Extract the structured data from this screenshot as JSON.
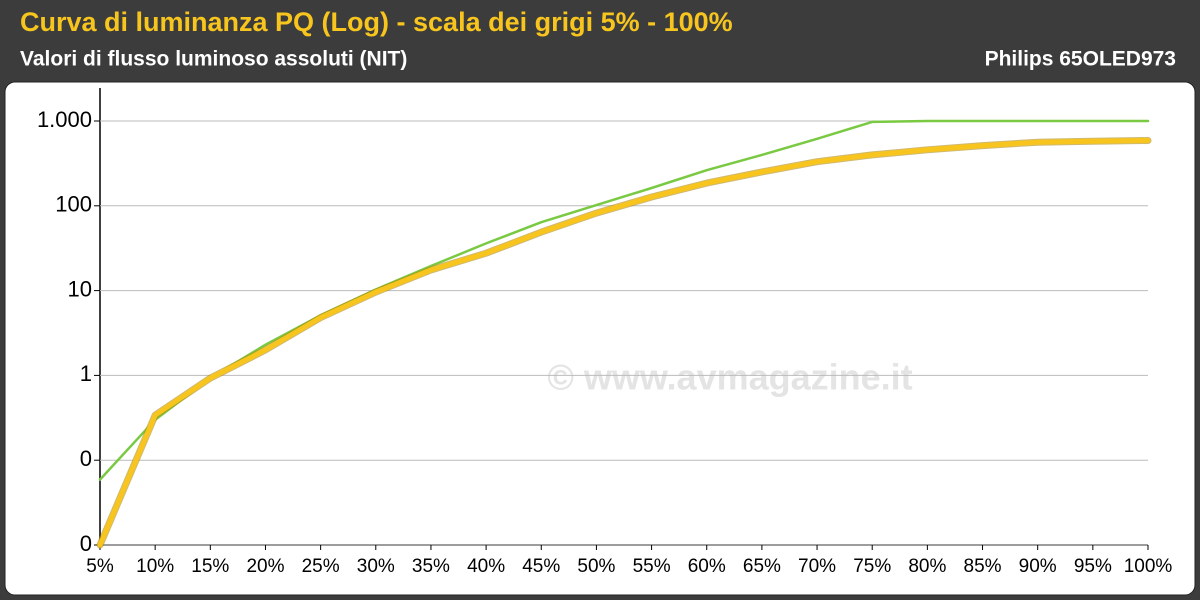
{
  "chart_data": {
    "type": "line",
    "title": "Curva di luminanza PQ (Log) - scala dei grigi 5% - 100%",
    "subtitle": "Valori di flusso luminoso assoluti (NIT)",
    "device": "Philips 65OLED973",
    "watermark": "© www.avmagazine.it",
    "log_scale": true,
    "grid": true,
    "categories": [
      "5%",
      "10%",
      "15%",
      "20%",
      "25%",
      "30%",
      "35%",
      "40%",
      "45%",
      "50%",
      "55%",
      "60%",
      "65%",
      "70%",
      "75%",
      "80%",
      "85%",
      "90%",
      "95%",
      "100%"
    ],
    "ylim": [
      0.01,
      2450
    ],
    "yticks": [
      {
        "value": 0.01,
        "label": "0"
      },
      {
        "value": 0.1,
        "label": "0"
      },
      1,
      10,
      100,
      {
        "value": 1000,
        "label": "1.000"
      }
    ],
    "series": [
      {
        "color": "#7ac943",
        "values": [
          0.059,
          0.3,
          0.93,
          2.3,
          5.1,
          10.3,
          19.5,
          36,
          64,
          102,
          162,
          263,
          398,
          617,
          977,
          1000,
          1000,
          1000,
          1000,
          1000
        ]
      },
      {
        "color": "#f7c51e",
        "values": [
          0.01,
          0.34,
          0.93,
          2.0,
          4.8,
          9.6,
          17.5,
          27.6,
          49,
          82,
          127,
          185,
          251,
          331,
          398,
          457,
          513,
          562,
          576,
          589
        ]
      }
    ]
  }
}
